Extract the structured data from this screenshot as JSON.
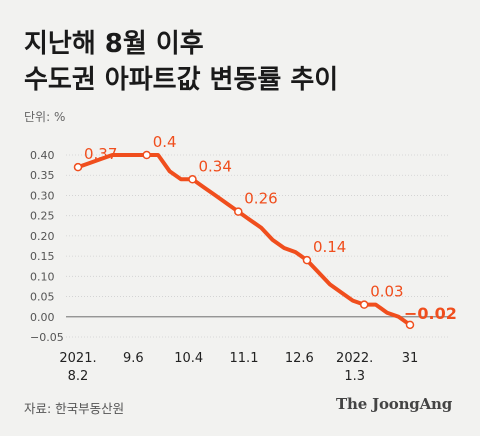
{
  "title_line1": "지난해 8월 이후",
  "title_line2": "수도권 아파트값 변동률 추이",
  "unit": "단위: %",
  "source": "자료: 한국부동산원",
  "logo": "The JoongAng",
  "colors": {
    "line": "#f04e1d",
    "axis": "#888888",
    "grid": "#d0d0d0",
    "text": "#555555"
  },
  "chart_data": {
    "type": "line",
    "title": "지난해 8월 이후 수도권 아파트값 변동률 추이",
    "ylabel": "단위: %",
    "ylim": [
      -0.05,
      0.4
    ],
    "yticks": [
      "0.40",
      "0.35",
      "0.30",
      "0.25",
      "0.20",
      "0.15",
      "0.10",
      "0.05",
      "0.00",
      "−0.05"
    ],
    "grid": true,
    "xticks": [
      {
        "line1": "2021.",
        "line2": "8.2"
      },
      {
        "line1": "9.6",
        "line2": ""
      },
      {
        "line1": "10.4",
        "line2": ""
      },
      {
        "line1": "11.1",
        "line2": ""
      },
      {
        "line1": "12.6",
        "line2": ""
      },
      {
        "line1": "2022.",
        "line2": "1.3"
      },
      {
        "line1": "31",
        "line2": ""
      }
    ],
    "series": [
      {
        "values": [
          0.37,
          0.38,
          0.39,
          0.4,
          0.4,
          0.4,
          0.4,
          0.4,
          0.36,
          0.34,
          0.34,
          0.32,
          0.3,
          0.28,
          0.26,
          0.24,
          0.22,
          0.19,
          0.17,
          0.16,
          0.14,
          0.11,
          0.08,
          0.06,
          0.04,
          0.03,
          0.03,
          0.01,
          0.0,
          -0.02
        ]
      }
    ],
    "labeled_points": [
      {
        "index": 0,
        "label": "0.37"
      },
      {
        "index": 6,
        "label": "0.4"
      },
      {
        "index": 10,
        "label": "0.34"
      },
      {
        "index": 14,
        "label": "0.26"
      },
      {
        "index": 20,
        "label": "0.14"
      },
      {
        "index": 25,
        "label": "0.03"
      },
      {
        "index": 29,
        "label": "−0.02"
      }
    ]
  }
}
